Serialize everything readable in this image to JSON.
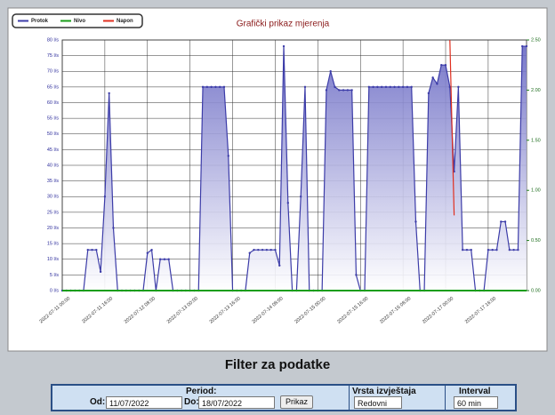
{
  "chart_data": {
    "type": "line",
    "title": "Grafički prikaz mjerenja",
    "legend": "top-left",
    "grid": true,
    "categories": [
      "2022-07-11 00:00",
      null,
      null,
      null,
      null,
      null,
      null,
      null,
      null,
      null,
      "2022-07-11 16:00",
      null,
      null,
      null,
      null,
      null,
      null,
      null,
      null,
      null,
      "2022-07-12 08:00",
      null,
      null,
      null,
      null,
      null,
      null,
      null,
      null,
      null,
      "2022-07-13 00:00",
      null,
      null,
      null,
      null,
      null,
      null,
      null,
      null,
      null,
      "2022-07-13 16:00",
      null,
      null,
      null,
      null,
      null,
      null,
      null,
      null,
      null,
      "2022-07-14 08:00",
      null,
      null,
      null,
      null,
      null,
      null,
      null,
      null,
      null,
      "2022-07-15 00:00",
      null,
      null,
      null,
      null,
      null,
      null,
      null,
      null,
      null,
      "2022-07-15 16:00",
      null,
      null,
      null,
      null,
      null,
      null,
      null,
      null,
      null,
      "2022-07-16 08:00",
      null,
      null,
      null,
      null,
      null,
      null,
      null,
      null,
      null,
      "2022-07-17 00:00",
      null,
      null,
      null,
      null,
      null,
      null,
      null,
      null,
      null,
      "2022-07-17 16:00",
      null,
      null,
      null,
      null,
      null,
      null,
      null,
      null,
      null
    ],
    "series": [
      {
        "name": "Protok",
        "color": "#3c3ca8",
        "values": [
          0,
          0,
          0,
          0,
          0,
          0,
          13,
          13,
          13,
          6,
          30,
          63,
          20,
          0,
          0,
          0,
          0,
          0,
          0,
          0,
          12,
          13,
          0,
          10,
          10,
          10,
          0,
          0,
          0,
          0,
          0,
          0,
          0,
          65,
          65,
          65,
          65,
          65,
          65,
          43,
          0,
          0,
          0,
          0,
          12,
          13,
          13,
          13,
          13,
          13,
          13,
          8,
          78,
          28,
          0,
          0,
          30,
          65,
          0,
          0,
          0,
          0,
          64,
          70,
          65,
          64,
          64,
          64,
          64,
          5,
          0,
          0,
          65,
          65,
          65,
          65,
          65,
          65,
          65,
          65,
          65,
          65,
          65,
          22,
          0,
          0,
          63,
          68,
          66,
          72,
          72,
          65,
          38,
          65,
          13,
          13,
          13,
          0,
          0,
          0,
          13,
          13,
          13,
          22,
          22,
          13,
          13,
          13,
          78,
          78
        ]
      },
      {
        "name": "Nivo",
        "color": "#1a9e1a",
        "axis": "y2",
        "values": [
          0,
          0,
          0,
          0,
          0,
          0,
          0,
          0,
          0,
          0,
          0,
          0,
          0,
          0,
          0,
          0,
          0,
          0,
          0,
          0,
          0,
          0,
          0,
          0,
          0,
          0,
          0,
          0,
          0,
          0,
          0,
          0,
          0,
          0,
          0,
          0,
          0,
          0,
          0,
          0,
          0,
          0,
          0,
          0,
          0,
          0,
          0,
          0,
          0,
          0,
          0,
          0,
          0,
          0,
          0,
          0,
          0,
          0,
          0,
          0,
          0,
          0,
          0,
          0,
          0,
          0,
          0,
          0,
          0,
          0,
          0,
          0,
          0,
          0,
          0,
          0,
          0,
          0,
          0,
          0,
          0,
          0,
          0,
          0,
          0,
          0,
          0,
          0,
          0,
          0,
          0,
          0,
          0,
          0,
          0,
          0,
          0,
          0,
          0,
          0,
          0,
          0,
          0,
          0,
          0,
          0,
          0,
          0,
          0,
          0
        ]
      },
      {
        "name": "Napon",
        "color": "#e03020",
        "axis": "y2",
        "values": [
          null,
          null,
          null,
          null,
          null,
          null,
          null,
          null,
          null,
          null,
          null,
          null,
          null,
          null,
          null,
          null,
          null,
          null,
          null,
          null,
          null,
          null,
          null,
          null,
          null,
          null,
          null,
          null,
          null,
          null,
          null,
          null,
          null,
          null,
          null,
          null,
          null,
          null,
          null,
          null,
          null,
          null,
          null,
          null,
          null,
          null,
          null,
          null,
          null,
          null,
          null,
          null,
          null,
          null,
          null,
          null,
          null,
          null,
          null,
          null,
          null,
          null,
          null,
          null,
          null,
          null,
          null,
          null,
          null,
          null,
          null,
          null,
          null,
          null,
          null,
          null,
          null,
          null,
          null,
          null,
          null,
          null,
          null,
          null,
          null,
          null,
          null,
          null,
          null,
          null,
          null,
          2.5,
          0.75,
          null,
          null,
          null,
          null,
          null,
          null,
          null,
          null,
          null,
          null,
          null,
          null,
          null,
          null,
          null,
          null,
          null
        ]
      }
    ],
    "ylim": [
      0,
      80
    ],
    "yticks": [
      {
        "value": 0,
        "label": "0 l/s"
      },
      {
        "value": 5,
        "label": "5 l/s"
      },
      {
        "value": 10,
        "label": "10 l/s"
      },
      {
        "value": 15,
        "label": "15 l/s"
      },
      {
        "value": 20,
        "label": "20 l/s"
      },
      {
        "value": 25,
        "label": "25 l/s"
      },
      {
        "value": 30,
        "label": "30 l/s"
      },
      {
        "value": 35,
        "label": "35 l/s"
      },
      {
        "value": 40,
        "label": "40 l/s"
      },
      {
        "value": 45,
        "label": "45 l/s"
      },
      {
        "value": 50,
        "label": "50 l/s"
      },
      {
        "value": 55,
        "label": "55 l/s"
      },
      {
        "value": 60,
        "label": "60 l/s"
      },
      {
        "value": 65,
        "label": "65 l/s"
      },
      {
        "value": 70,
        "label": "70 l/s"
      },
      {
        "value": 75,
        "label": "75 l/s"
      },
      {
        "value": 80,
        "label": "80 l/s"
      }
    ],
    "y2lim": [
      0,
      2.5
    ],
    "y2ticks": [
      {
        "value": 0,
        "label": "0.00"
      },
      {
        "value": 0.5,
        "label": "0.50"
      },
      {
        "value": 1,
        "label": "1.00"
      },
      {
        "value": 1.5,
        "label": "1.50"
      },
      {
        "value": 2,
        "label": "2.00"
      },
      {
        "value": 2.5,
        "label": "2.50"
      }
    ]
  },
  "filter": {
    "title": "Filter za podatke",
    "period_label": "Period:",
    "from_label": "Od:",
    "from": "11/07/2022",
    "to_label": "Do:",
    "to": "18/07/2022",
    "button": "Prikaz",
    "report_label": "Vrsta izvještaja",
    "report": "Redovni",
    "interval_label": "Interval",
    "interval": "60 min"
  }
}
